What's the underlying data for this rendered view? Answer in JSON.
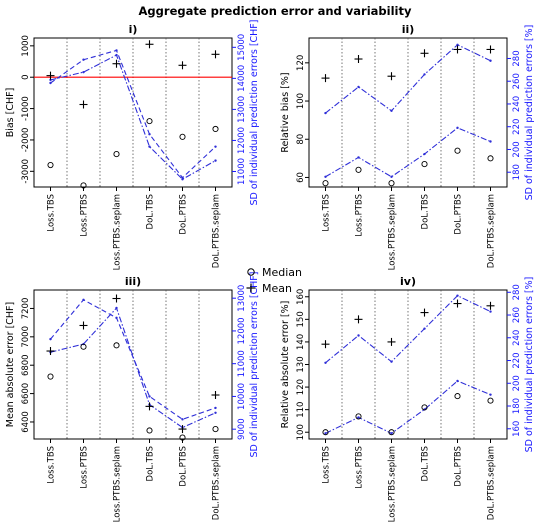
{
  "title": "Aggregate prediction error and variability",
  "categories": [
    "Loss.TBS",
    "Loss.PTBS",
    "Loss.PTBS.seplam",
    "DoL.TBS",
    "DoL.PTBS",
    "DoL.PTBS.seplam"
  ],
  "legend": {
    "items": [
      {
        "name": "Median",
        "marker": "circle"
      },
      {
        "name": "Mean",
        "marker": "plus"
      }
    ],
    "placement": "center"
  },
  "colors": {
    "axis_black": "#000000",
    "sd_axis": "#1a1aff",
    "sd_line": "#2f2fd8",
    "zero_line": "#ff0000",
    "divider": "#555555"
  },
  "chart_data": [
    {
      "id": "i",
      "type": "scatter",
      "title": "i)",
      "ylabel": "Bias [CHF]",
      "ylim": [
        -3500,
        1250
      ],
      "yticks": [
        -3000,
        -2000,
        -1000,
        0,
        1000
      ],
      "y2label": "SD of individual prediction errors [CHF]",
      "y2lim": [
        10500,
        15300
      ],
      "y2ticks": [
        11000,
        12000,
        13000,
        14000,
        15000
      ],
      "hline": 0,
      "median": [
        -2800,
        -3450,
        -2450,
        -1400,
        -1900,
        -1650
      ],
      "mean": [
        50,
        -870,
        430,
        1050,
        380,
        730
      ],
      "sd_series": [
        {
          "style": "dash-dot",
          "values": [
            13950,
            14200,
            14750,
            11800,
            10750,
            11350
          ]
        },
        {
          "style": "dashed",
          "values": [
            13850,
            14600,
            14900,
            12200,
            10800,
            11800
          ]
        }
      ]
    },
    {
      "id": "ii",
      "type": "scatter",
      "title": "ii)",
      "ylabel": "Relative bias [%]",
      "ylim": [
        55,
        133
      ],
      "yticks": [
        60,
        80,
        100,
        120
      ],
      "y2label": "SD of individual prediction errors [%]",
      "y2lim": [
        167,
        298
      ],
      "y2ticks": [
        180,
        200,
        220,
        240,
        260,
        280
      ],
      "median": [
        57,
        64,
        57,
        67,
        74,
        70
      ],
      "mean": [
        112,
        122,
        113,
        125,
        127,
        127
      ],
      "sd_series": [
        {
          "style": "dash-dot",
          "values": [
            176,
            193,
            176,
            196,
            219,
            207
          ]
        },
        {
          "style": "dash-dot",
          "values": [
            232,
            255,
            234,
            266,
            292,
            278
          ]
        }
      ]
    },
    {
      "id": "iii",
      "type": "scatter",
      "title": "iii)",
      "ylabel": "Mean absolute error [CHF]",
      "ylim": [
        6280,
        7330
      ],
      "yticks": [
        6400,
        6600,
        6800,
        7000,
        7200
      ],
      "y2label": "SD of individual prediction errors [CHF]",
      "y2lim": [
        8700,
        13250
      ],
      "y2ticks": [
        9000,
        10000,
        11000,
        12000,
        13000
      ],
      "median": [
        6720,
        6930,
        6940,
        6340,
        6290,
        6350
      ],
      "mean": [
        6900,
        7080,
        7270,
        6510,
        6350,
        6590
      ],
      "sd_series": [
        {
          "style": "dash-dot",
          "values": [
            11350,
            11600,
            12700,
            9750,
            9050,
            9500
          ]
        },
        {
          "style": "dashed",
          "values": [
            11750,
            12950,
            12400,
            10000,
            9300,
            9650
          ]
        }
      ]
    },
    {
      "id": "iv",
      "type": "scatter",
      "title": "iv)",
      "ylabel": "Relative absolute error [%]",
      "ylim": [
        97,
        163
      ],
      "yticks": [
        100,
        110,
        120,
        130,
        140,
        150,
        160
      ],
      "y2label": "SD of individual prediction errors [%]",
      "y2lim": [
        151,
        282
      ],
      "y2ticks": [
        160,
        180,
        200,
        220,
        240,
        260,
        280
      ],
      "median": [
        100,
        107,
        100,
        111,
        116,
        114
      ],
      "mean": [
        139,
        150,
        140,
        153,
        157,
        156
      ],
      "sd_series": [
        {
          "style": "dash-dot",
          "values": [
            156,
            170,
            156,
            177,
            202,
            190
          ]
        },
        {
          "style": "dash-dot",
          "values": [
            218,
            242,
            219,
            248,
            277,
            263
          ]
        }
      ]
    }
  ]
}
